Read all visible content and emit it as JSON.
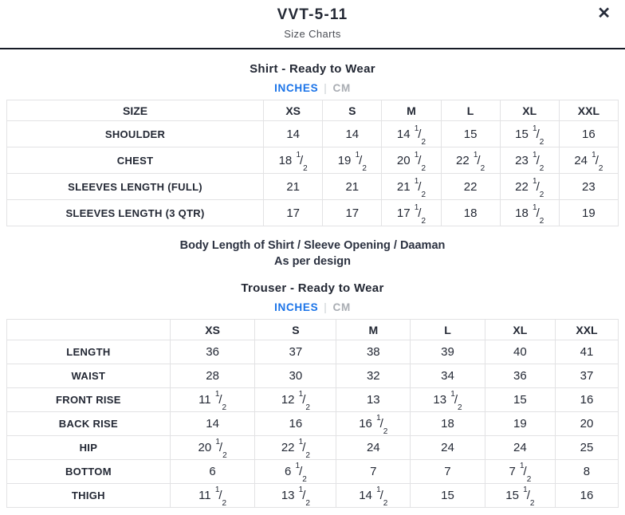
{
  "modal": {
    "title": "VVT-5-11",
    "subtitle": "Size Charts",
    "close_icon_glyph": "✕"
  },
  "colors": {
    "accent_blue": "#1a73e8",
    "inactive_unit_gray": "#a9adb3",
    "text_dark": "#232834",
    "table_border": "#e2e2e4",
    "header_divider": "#161b26"
  },
  "sections": [
    {
      "heading": "Shirt - Ready to Wear",
      "units": {
        "selected": "INCHES",
        "inches_label": "INCHES",
        "cm_label": "CM",
        "separator": "|"
      },
      "table": {
        "columns": [
          "SIZE",
          "XS",
          "S",
          "M",
          "L",
          "XL",
          "XXL"
        ],
        "rows": [
          {
            "label": "SHOULDER",
            "values": [
              "14",
              "14",
              "14 1/2",
              "15",
              "15 1/2",
              "16"
            ]
          },
          {
            "label": "CHEST",
            "values": [
              "18 1/2",
              "19 1/2",
              "20 1/2",
              "22 1/2",
              "23 1/2",
              "24 1/2"
            ]
          },
          {
            "label": "SLEEVES LENGTH (FULL)",
            "values": [
              "21",
              "21",
              "21 1/2",
              "22",
              "22 1/2",
              "23"
            ]
          },
          {
            "label": "SLEEVES LENGTH (3 QTR)",
            "values": [
              "17",
              "17",
              "17 1/2",
              "18",
              "18 1/2",
              "19"
            ]
          }
        ]
      },
      "note_lines": [
        "Body Length of Shirt / Sleeve Opening / Daaman",
        "As per design"
      ]
    },
    {
      "heading": "Trouser - Ready to Wear",
      "units": {
        "selected": "INCHES",
        "inches_label": "INCHES",
        "cm_label": "CM",
        "separator": "|"
      },
      "table": {
        "columns": [
          "",
          "XS",
          "S",
          "M",
          "L",
          "XL",
          "XXL"
        ],
        "rows": [
          {
            "label": "LENGTH",
            "values": [
              "36",
              "37",
              "38",
              "39",
              "40",
              "41"
            ]
          },
          {
            "label": "WAIST",
            "values": [
              "28",
              "30",
              "32",
              "34",
              "36",
              "37"
            ]
          },
          {
            "label": "FRONT RISE",
            "values": [
              "11 1/2",
              "12 1/2",
              "13",
              "13 1/2",
              "15",
              "16"
            ]
          },
          {
            "label": "BACK RISE",
            "values": [
              "14",
              "16",
              "16 1/2",
              "18",
              "19",
              "20"
            ]
          },
          {
            "label": "HIP",
            "values": [
              "20 1/2",
              "22 1/2",
              "24",
              "24",
              "24",
              "25"
            ]
          },
          {
            "label": "BOTTOM",
            "values": [
              "6",
              "6 1/2",
              "7",
              "7",
              "7 1/2",
              "8"
            ]
          },
          {
            "label": "THIGH",
            "values": [
              "11 1/2",
              "13 1/2",
              "14 1/2",
              "15",
              "15 1/2",
              "16"
            ]
          }
        ]
      }
    }
  ]
}
